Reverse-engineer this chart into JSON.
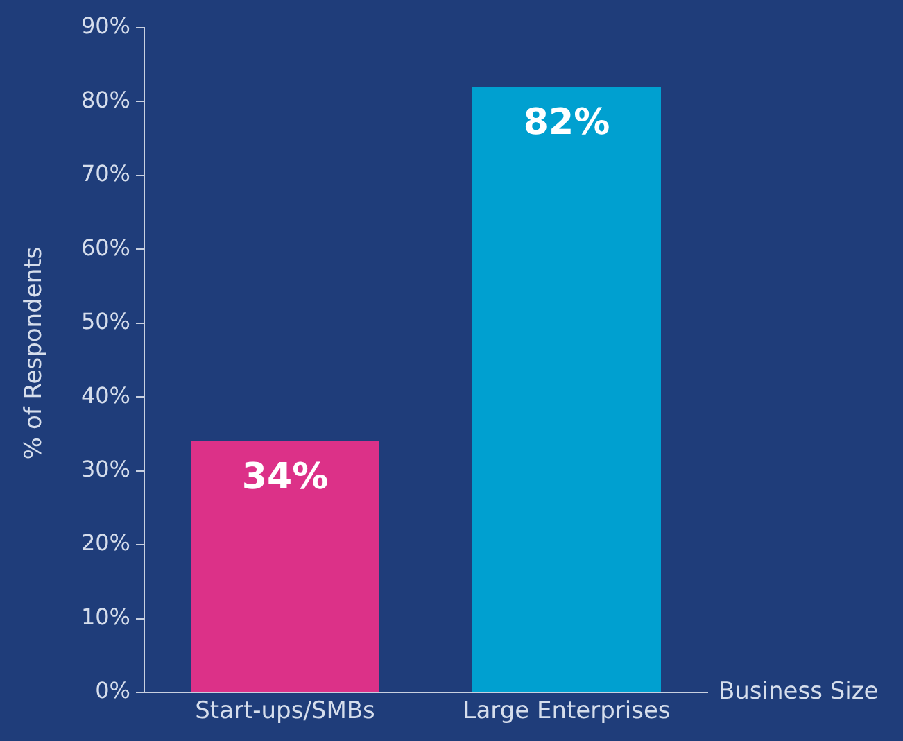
{
  "chart_data": {
    "type": "bar",
    "xlabel": "Business Size",
    "ylabel": "% of Respondents",
    "categories": [
      "Start-ups/SMBs",
      "Large Enterprises"
    ],
    "values": [
      34,
      82
    ],
    "colors": [
      "#dc3188",
      "#00a0d0"
    ],
    "value_labels": [
      "34%",
      "82%"
    ],
    "ylim": [
      0,
      90
    ],
    "yticks": [
      {
        "value": 0,
        "label": "0%"
      },
      {
        "value": 10,
        "label": "10%"
      },
      {
        "value": 20,
        "label": "20%"
      },
      {
        "value": 30,
        "label": "30%"
      },
      {
        "value": 40,
        "label": "40%"
      },
      {
        "value": 50,
        "label": "50%"
      },
      {
        "value": 60,
        "label": "60%"
      },
      {
        "value": 70,
        "label": "70%"
      },
      {
        "value": 80,
        "label": "80%"
      },
      {
        "value": 90,
        "label": "90%"
      }
    ],
    "grid": false,
    "legend": false
  }
}
